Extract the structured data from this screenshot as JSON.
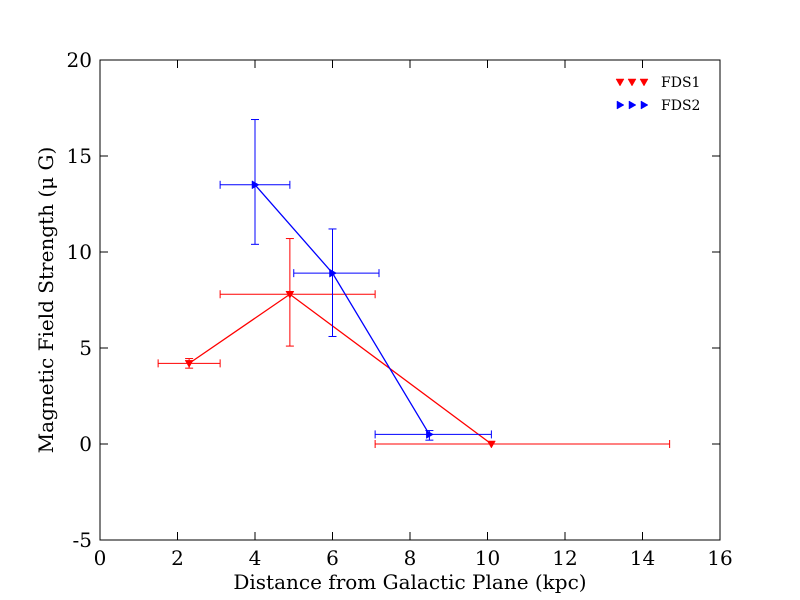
{
  "chart_data": {
    "type": "scatter",
    "title": "",
    "xlabel": "Distance from Galactic Plane (kpc)",
    "ylabel": "Magnetic Field Strength (μ G)",
    "xlim": [
      0,
      16
    ],
    "ylim": [
      -5,
      20
    ],
    "xticks": [
      0,
      2,
      4,
      6,
      8,
      10,
      12,
      14,
      16
    ],
    "yticks": [
      -5,
      0,
      5,
      10,
      15,
      20
    ],
    "xtick_labels": [
      "0",
      "2",
      "4",
      "6",
      "8",
      "10",
      "12",
      "14",
      "16"
    ],
    "ytick_labels": [
      "-5",
      "0",
      "5",
      "10",
      "15",
      "20"
    ],
    "legend_position": "top-right",
    "series": [
      {
        "name": "FDS1",
        "color": "#ff0000",
        "marker": "triangle-down",
        "points": [
          {
            "x": 2.3,
            "y": 4.2,
            "xerr": [
              0.8,
              0.8
            ],
            "yerr": [
              0.25,
              0.25
            ]
          },
          {
            "x": 4.9,
            "y": 7.8,
            "xerr": [
              1.8,
              2.2
            ],
            "yerr": [
              2.7,
              2.9
            ]
          },
          {
            "x": 10.1,
            "y": 0.0,
            "xerr": [
              3.0,
              4.6
            ],
            "yerr": [
              0,
              0
            ]
          }
        ]
      },
      {
        "name": "FDS2",
        "color": "#0000ff",
        "marker": "triangle-right",
        "points": [
          {
            "x": 4.0,
            "y": 13.5,
            "xerr": [
              0.9,
              0.9
            ],
            "yerr": [
              3.1,
              3.4
            ]
          },
          {
            "x": 6.0,
            "y": 8.9,
            "xerr": [
              1.0,
              1.2
            ],
            "yerr": [
              3.3,
              2.3
            ]
          },
          {
            "x": 8.5,
            "y": 0.5,
            "xerr": [
              1.4,
              1.6
            ],
            "yerr": [
              0.3,
              0.2
            ]
          }
        ]
      }
    ]
  }
}
